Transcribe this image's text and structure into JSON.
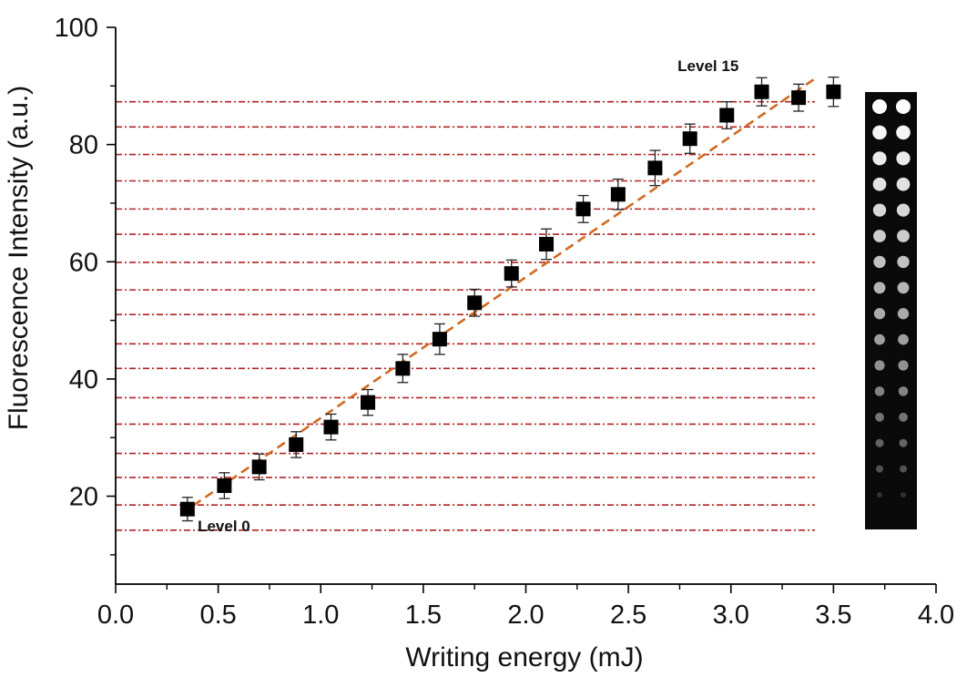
{
  "chart_data": {
    "type": "scatter",
    "xlabel": "Writing energy (mJ)",
    "ylabel": "Fluorescence Intensity (a.u.)",
    "xlim": [
      0.0,
      4.0
    ],
    "ylim": [
      5,
      100
    ],
    "x_ticks": [
      "0.0",
      "0.5",
      "1.0",
      "1.5",
      "2.0",
      "2.5",
      "3.0",
      "3.5",
      "4.0"
    ],
    "y_ticks": [
      "20",
      "40",
      "60",
      "80",
      "100"
    ],
    "grid": false,
    "series": [
      {
        "marker": "square",
        "color": "#000000",
        "x": [
          0.35,
          0.53,
          0.7,
          0.88,
          1.05,
          1.23,
          1.4,
          1.58,
          1.75,
          1.93,
          2.1,
          2.28,
          2.45,
          2.63,
          2.8,
          2.98,
          3.15,
          3.33,
          3.5
        ],
        "y": [
          17.8,
          21.8,
          25.0,
          28.8,
          31.8,
          36.0,
          41.8,
          46.8,
          53.0,
          58.0,
          63.0,
          69.0,
          71.5,
          76.0,
          81.0,
          85.0,
          89.0,
          88.0,
          89.0
        ],
        "error": [
          2.0,
          2.2,
          2.2,
          2.2,
          2.2,
          2.2,
          2.4,
          2.6,
          2.3,
          2.3,
          2.6,
          2.3,
          2.6,
          3.0,
          2.5,
          2.3,
          2.4,
          2.3,
          2.5
        ]
      }
    ],
    "fit_line": {
      "style": "dashed",
      "color": "#d2691e",
      "x": [
        0.32,
        3.42
      ],
      "y": [
        17.0,
        91.5
      ]
    },
    "level_lines": {
      "style": "dash-dot",
      "color": "#b22222",
      "x_start": 0.0,
      "y": [
        14.2,
        18.5,
        23.2,
        27.3,
        32.3,
        36.8,
        41.8,
        46.0,
        51.0,
        55.2,
        59.9,
        64.7,
        69.0,
        73.8,
        78.3,
        83.0,
        87.3
      ]
    },
    "annotations": [
      {
        "text": "Level 0",
        "x": 0.4,
        "y": 14.0
      },
      {
        "text": "Level 15",
        "x": 2.74,
        "y": 92.5
      }
    ],
    "inset": {
      "type": "fluorescence-dot-array-image",
      "rows": 16,
      "columns": 2,
      "background": "#0a0a0a"
    }
  }
}
